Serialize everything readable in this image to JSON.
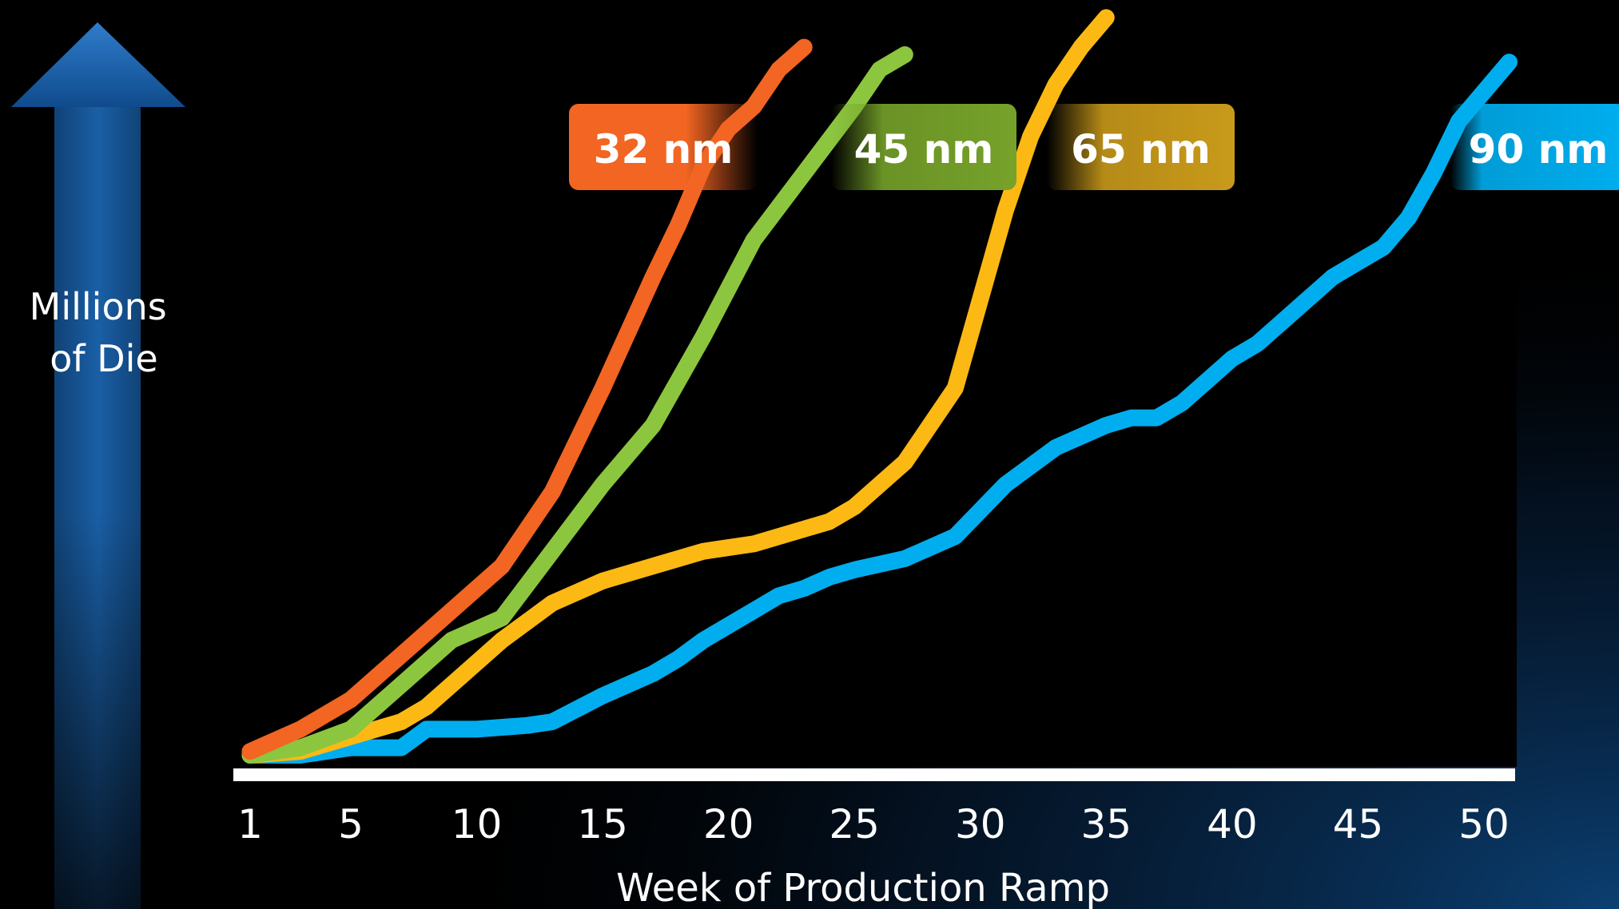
{
  "chart_data": {
    "type": "line",
    "xlabel": "Week of Production Ramp",
    "ylabel_lines": [
      "Millions",
      "of Die"
    ],
    "xticks": [
      1,
      5,
      10,
      15,
      20,
      25,
      30,
      35,
      40,
      45,
      50
    ],
    "xlim": [
      1,
      52
    ],
    "ylim": [
      0,
      100
    ],
    "grid": false,
    "series": [
      {
        "name": "90 nm",
        "color": "#00aeef",
        "x": [
          1,
          3,
          5,
          6,
          7,
          8,
          10,
          12,
          13,
          15,
          17,
          18,
          19,
          21,
          22,
          23,
          24,
          25,
          27,
          29,
          31,
          33,
          35,
          36,
          37,
          38,
          40,
          41,
          42,
          43,
          44,
          45,
          46,
          47,
          48,
          49,
          50,
          51
        ],
        "y": [
          0.5,
          0.5,
          1.5,
          1.5,
          1.5,
          4,
          4,
          4.5,
          5,
          8.5,
          11.5,
          13.5,
          16,
          20,
          22,
          23,
          24.5,
          25.5,
          27,
          30,
          37,
          42,
          45,
          46,
          46,
          48,
          54,
          56,
          59,
          62,
          65,
          67,
          69,
          73,
          79,
          86,
          90,
          94
        ]
      },
      {
        "name": "65 nm",
        "color": "#fdb913",
        "x": [
          1,
          3,
          5,
          7,
          8,
          9,
          11,
          13,
          15,
          17,
          19,
          21,
          23,
          24,
          25,
          27,
          29,
          30,
          31,
          32,
          33,
          34,
          35
        ],
        "y": [
          0.5,
          1,
          3,
          5,
          7,
          10,
          16,
          21,
          24,
          26,
          28,
          29,
          31,
          32,
          34,
          40,
          50,
          62,
          74,
          84,
          91,
          96,
          100
        ]
      },
      {
        "name": "45 nm",
        "color": "#8cc63f",
        "x": [
          1,
          3,
          5,
          7,
          9,
          11,
          13,
          15,
          17,
          19,
          21,
          23,
          25,
          26,
          27
        ],
        "y": [
          0.5,
          1.5,
          4,
          10,
          16,
          19,
          28,
          37,
          45,
          57,
          70,
          79,
          88,
          93,
          95
        ]
      },
      {
        "name": "32 nm",
        "color": "#f26522",
        "x": [
          1,
          3,
          5,
          7,
          9,
          11,
          13,
          15,
          17,
          18,
          19,
          20,
          21,
          22,
          23
        ],
        "y": [
          1,
          4,
          8,
          14,
          20,
          26,
          36,
          50,
          65,
          72,
          80,
          85,
          88,
          93,
          96
        ]
      }
    ]
  }
}
